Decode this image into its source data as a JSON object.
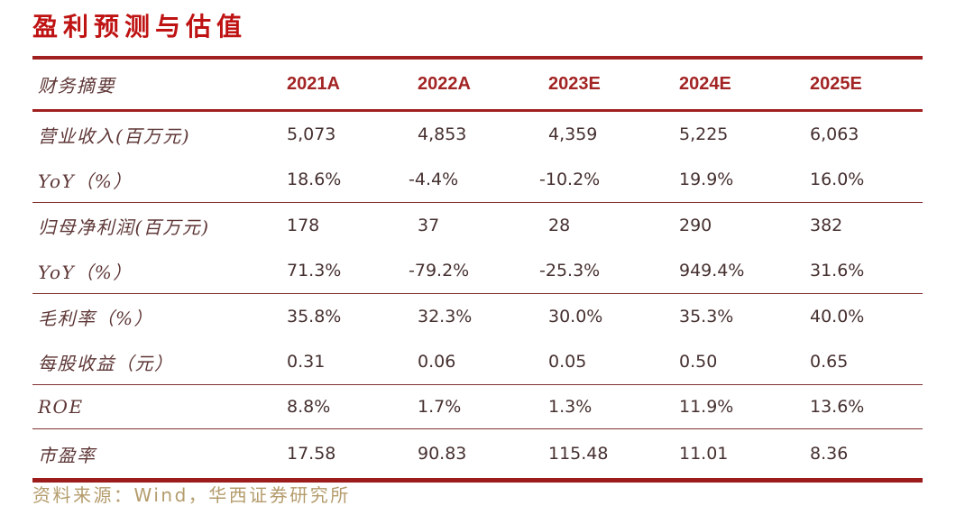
{
  "title": "盈利预测与估值",
  "table": {
    "header": {
      "label": "财务摘要",
      "cols": [
        "2021A",
        "2022A",
        "2023E",
        "2024E",
        "2025E"
      ]
    },
    "rows": [
      {
        "label": "营业收入(百万元)",
        "values": [
          "5,073",
          "4,853",
          "4,359",
          "5,225",
          "6,063"
        ]
      },
      {
        "label": "YoY（%）",
        "values": [
          "18.6%",
          "-4.4%",
          "-10.2%",
          "19.9%",
          "16.0%"
        ]
      },
      {
        "label": "归母净利润(百万元)",
        "values": [
          "178",
          "37",
          "28",
          "290",
          "382"
        ]
      },
      {
        "label": "YoY（%）",
        "values": [
          "71.3%",
          "-79.2%",
          "-25.3%",
          "949.4%",
          "31.6%"
        ]
      },
      {
        "label": "毛利率（%）",
        "values": [
          "35.8%",
          "32.3%",
          "30.0%",
          "35.3%",
          "40.0%"
        ]
      },
      {
        "label": "每股收益（元）",
        "values": [
          "0.31",
          "0.06",
          "0.05",
          "0.50",
          "0.65"
        ]
      },
      {
        "label": "ROE",
        "values": [
          "8.8%",
          "1.7%",
          "1.3%",
          "11.9%",
          "13.6%"
        ]
      },
      {
        "label": "市盈率",
        "values": [
          "17.58",
          "90.83",
          "115.48",
          "11.01",
          "8.36"
        ]
      }
    ]
  },
  "footer": {
    "source": "资料来源：Wind，华西证券研究所"
  },
  "colors": {
    "title_red": "#bf1313",
    "header_year_red": "#a32424",
    "rule_red": "#a02020",
    "separator_maroon": "#823030",
    "label_maroon": "#5e3636",
    "value_brown": "#463030",
    "source_gold": "#b49c6c"
  }
}
